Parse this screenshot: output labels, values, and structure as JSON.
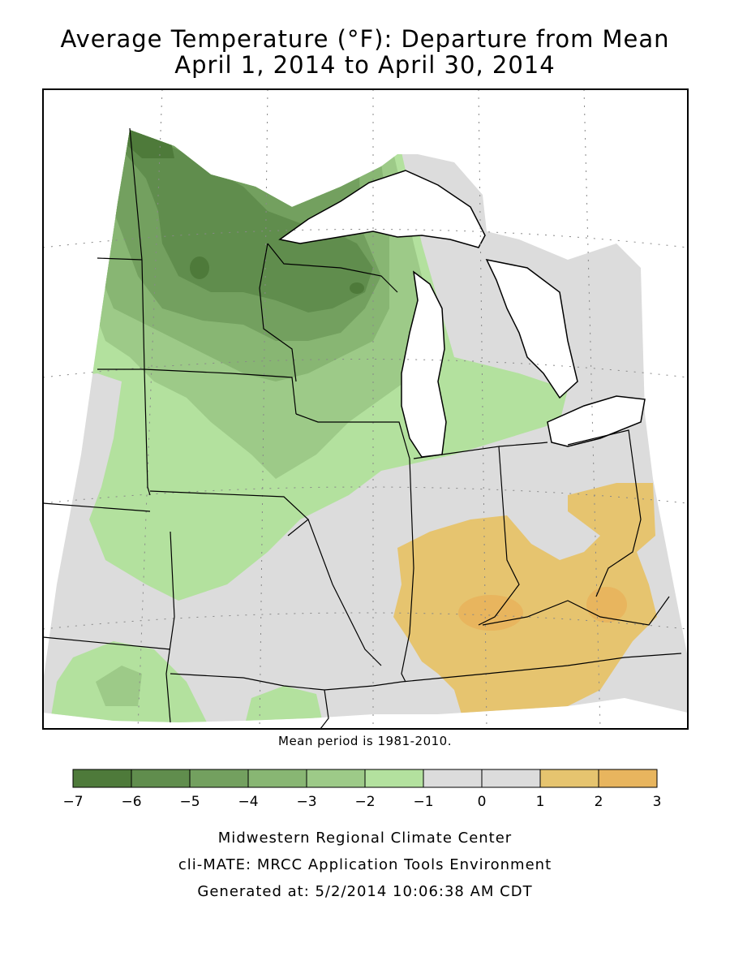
{
  "header": {
    "title_line1": "Average Temperature (°F): Departure from Mean",
    "title_line2": "April 1, 2014 to April 30, 2014"
  },
  "map": {
    "region": "Midwest / Great Lakes",
    "variable": "Average temperature departure from mean",
    "units": "°F",
    "mean_period_note": "Mean period is 1981-2010."
  },
  "legend": {
    "bins": [
      {
        "from": -7,
        "to": -6,
        "color": "#4e7a3a"
      },
      {
        "from": -6,
        "to": -5,
        "color": "#608d4d"
      },
      {
        "from": -5,
        "to": -4,
        "color": "#73a05f"
      },
      {
        "from": -4,
        "to": -3,
        "color": "#88b673"
      },
      {
        "from": -3,
        "to": -2,
        "color": "#9dca88"
      },
      {
        "from": -2,
        "to": -1,
        "color": "#b3e19e"
      },
      {
        "from": -1,
        "to": 0,
        "color": "#dcdcdc"
      },
      {
        "from": 0,
        "to": 1,
        "color": "#dcdcdc"
      },
      {
        "from": 1,
        "to": 2,
        "color": "#e6c46f"
      },
      {
        "from": 2,
        "to": 3,
        "color": "#e8b55e"
      }
    ],
    "ticks": [
      "−7",
      "−6",
      "−5",
      "−4",
      "−3",
      "−2",
      "−1",
      "0",
      "1",
      "2",
      "3"
    ]
  },
  "footer": {
    "line1": "Midwestern Regional Climate Center",
    "line2": "cli-MATE: MRCC Application Tools Environment",
    "line3": "Generated at: 5/2/2014 10:06:38 AM CDT"
  }
}
